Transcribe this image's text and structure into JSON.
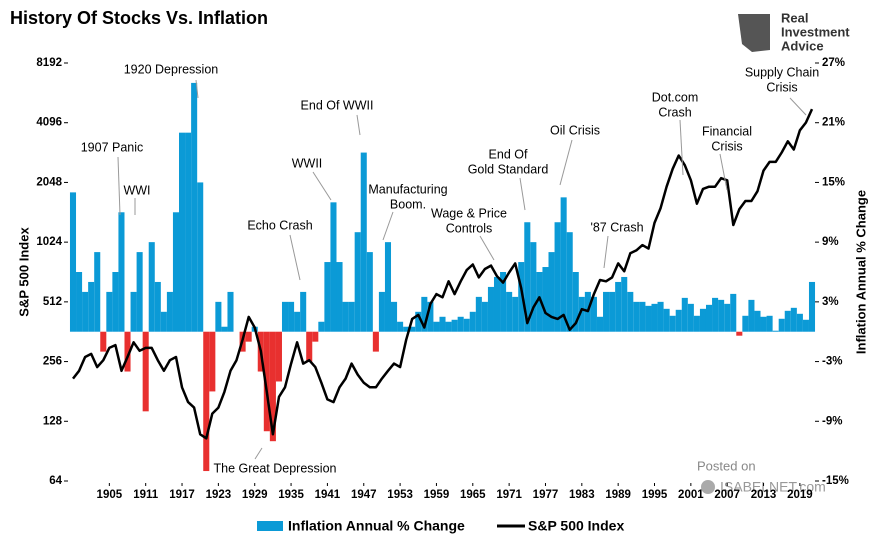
{
  "chart_data": {
    "type": "combo",
    "title": "History Of Stocks Vs. Inflation",
    "y_label": "S&P 500 Index",
    "y2_label": "Inflation Annual % Change",
    "log_y": true,
    "negative_color": "#e8302f",
    "legend": "bottom",
    "xlim": [
      1899,
      2021
    ],
    "xticks": [
      1905,
      1911,
      1917,
      1923,
      1929,
      1935,
      1941,
      1947,
      1953,
      1959,
      1965,
      1971,
      1977,
      1983,
      1989,
      1995,
      2001,
      2007,
      2013,
      2019
    ],
    "ylim": [
      64,
      8192
    ],
    "yticks": [
      64,
      128,
      256,
      512,
      1024,
      2048,
      4096,
      8192
    ],
    "y2lim": [
      -15,
      27
    ],
    "y2ticks": [
      {
        "value": -15,
        "label": "-15%"
      },
      {
        "value": -9,
        "label": "-9%"
      },
      {
        "value": -3,
        "label": "-3%"
      },
      {
        "value": 3,
        "label": "3%"
      },
      {
        "value": 9,
        "label": "9%"
      },
      {
        "value": 15,
        "label": "15%"
      },
      {
        "value": 21,
        "label": "21%"
      },
      {
        "value": 27,
        "label": "27%"
      }
    ],
    "x": [
      1899,
      1900,
      1901,
      1902,
      1903,
      1904,
      1905,
      1906,
      1907,
      1908,
      1909,
      1910,
      1911,
      1912,
      1913,
      1914,
      1915,
      1916,
      1917,
      1918,
      1919,
      1920,
      1921,
      1922,
      1923,
      1924,
      1925,
      1926,
      1927,
      1928,
      1929,
      1930,
      1931,
      1932,
      1933,
      1934,
      1935,
      1936,
      1937,
      1938,
      1939,
      1940,
      1941,
      1942,
      1943,
      1944,
      1945,
      1946,
      1947,
      1948,
      1949,
      1950,
      1951,
      1952,
      1953,
      1954,
      1955,
      1956,
      1957,
      1958,
      1959,
      1960,
      1961,
      1962,
      1963,
      1964,
      1965,
      1966,
      1967,
      1968,
      1969,
      1970,
      1971,
      1972,
      1973,
      1974,
      1975,
      1976,
      1977,
      1978,
      1979,
      1980,
      1981,
      1982,
      1983,
      1984,
      1985,
      1986,
      1987,
      1988,
      1989,
      1990,
      1991,
      1992,
      1993,
      1994,
      1995,
      1996,
      1997,
      1998,
      1999,
      2000,
      2001,
      2002,
      2003,
      2004,
      2005,
      2006,
      2007,
      2008,
      2009,
      2010,
      2011,
      2012,
      2013,
      2014,
      2015,
      2016,
      2017,
      2018,
      2019,
      2020,
      2021
    ],
    "series": [
      {
        "name": "Inflation Annual % Change",
        "type": "bar",
        "axis": "y2",
        "color": "#0b9ad6",
        "values": [
          14,
          6,
          4,
          5,
          8,
          -2,
          4,
          6,
          12,
          -4,
          4,
          8,
          -8,
          9,
          5,
          2,
          4,
          12,
          20,
          20,
          25,
          15,
          -14,
          -6,
          3,
          0.5,
          4,
          0,
          -2,
          -1,
          0.5,
          -4,
          -10,
          -11,
          -5,
          3,
          3,
          2,
          4,
          -3,
          -1,
          1,
          7,
          13,
          7,
          3,
          3,
          10,
          18,
          8,
          -2,
          4,
          9,
          3,
          1,
          0.5,
          0.5,
          2,
          3.5,
          3,
          1,
          1.5,
          1,
          1.2,
          1.5,
          1.3,
          2,
          3.5,
          3,
          4.5,
          5.5,
          6,
          4,
          3.5,
          7,
          11,
          9,
          6,
          6.5,
          8,
          11,
          13.5,
          10,
          6,
          3.5,
          4,
          3.5,
          1.5,
          4,
          4,
          5,
          5.5,
          4,
          3,
          3,
          2.6,
          2.8,
          3,
          2.3,
          1.6,
          2.2,
          3.4,
          2.8,
          1.6,
          2.3,
          2.7,
          3.4,
          3.2,
          2.8,
          3.8,
          -0.4,
          1.6,
          3.2,
          2.1,
          1.5,
          1.6,
          0.1,
          1.3,
          2.1,
          2.4,
          1.8,
          1.2,
          5
        ]
      },
      {
        "name": "S&P 500 Index",
        "type": "line",
        "color": "#000000",
        "values": [
          210,
          230,
          270,
          280,
          240,
          260,
          300,
          310,
          230,
          270,
          320,
          290,
          300,
          300,
          260,
          230,
          260,
          270,
          190,
          160,
          150,
          110,
          105,
          140,
          150,
          180,
          230,
          260,
          330,
          430,
          380,
          290,
          180,
          110,
          170,
          190,
          250,
          320,
          250,
          260,
          240,
          200,
          165,
          160,
          190,
          210,
          250,
          220,
          200,
          190,
          190,
          210,
          230,
          250,
          240,
          330,
          420,
          440,
          380,
          500,
          560,
          540,
          650,
          560,
          650,
          740,
          790,
          680,
          750,
          780,
          690,
          640,
          720,
          800,
          600,
          400,
          480,
          540,
          450,
          430,
          420,
          440,
          370,
          400,
          470,
          460,
          560,
          660,
          650,
          680,
          800,
          730,
          900,
          930,
          990,
          950,
          1280,
          1520,
          1950,
          2400,
          2800,
          2500,
          2100,
          1600,
          1900,
          1950,
          1950,
          2150,
          2100,
          1250,
          1500,
          1650,
          1650,
          1850,
          2350,
          2600,
          2600,
          2900,
          3300,
          3000,
          3750,
          4100,
          4800
        ]
      }
    ],
    "annotations": [
      {
        "lines": [
          "1920 Depression"
        ]
      },
      {
        "lines": [
          "1907 Panic"
        ]
      },
      {
        "lines": [
          "WWI"
        ]
      },
      {
        "lines": [
          "End Of WWII"
        ]
      },
      {
        "lines": [
          "WWII"
        ]
      },
      {
        "lines": [
          "Echo Crash"
        ]
      },
      {
        "lines": [
          "Manufacturing",
          "Boom."
        ]
      },
      {
        "lines": [
          "Wage & Price",
          "Controls"
        ]
      },
      {
        "lines": [
          "End Of",
          "Gold Standard"
        ]
      },
      {
        "lines": [
          "Oil Crisis"
        ]
      },
      {
        "lines": [
          "'87 Crash"
        ]
      },
      {
        "lines": [
          "Dot.com",
          "Crash"
        ]
      },
      {
        "lines": [
          "Financial",
          "Crisis"
        ]
      },
      {
        "lines": [
          "Supply Chain",
          "Crisis"
        ]
      },
      {
        "lines": [
          "The Great Depression"
        ]
      }
    ]
  },
  "branding": {
    "logo_lines": [
      "Real",
      "Investment",
      "Advice"
    ],
    "posted_on": "Posted on",
    "source": "ISABELNET.com"
  }
}
